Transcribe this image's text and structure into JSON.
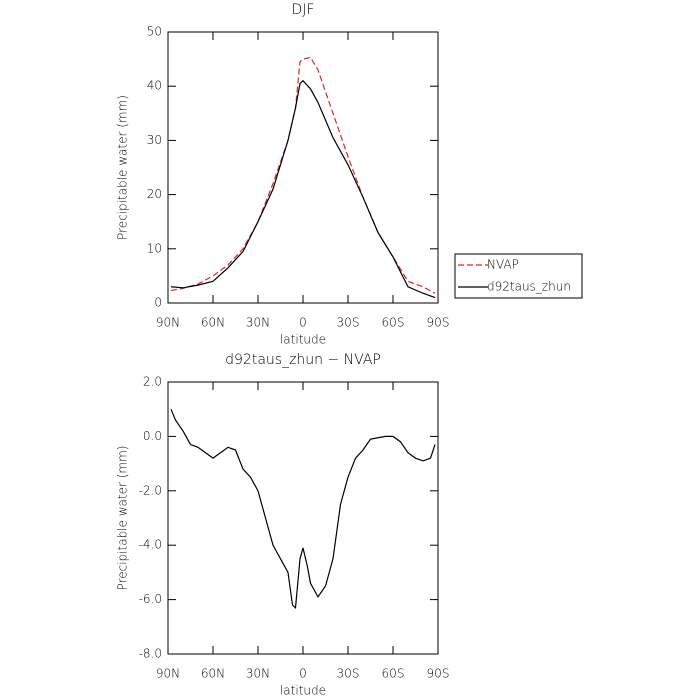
{
  "chart_data": [
    {
      "type": "line",
      "title": "DJF",
      "xlabel": "latitude",
      "ylabel": "Precipitable water (mm)",
      "x": [
        88,
        80,
        70,
        60,
        50,
        40,
        30,
        20,
        10,
        5,
        2,
        0,
        -5,
        -10,
        -20,
        -30,
        -40,
        -50,
        -60,
        -70,
        -80,
        -88
      ],
      "series": [
        {
          "name": "NVAP",
          "color": "#e8221c",
          "line_style": "dashed",
          "values": [
            2.3,
            2.7,
            3.5,
            5,
            7,
            10,
            15,
            22,
            30,
            36,
            44.5,
            45,
            45.3,
            43,
            35,
            27,
            19.5,
            13,
            8.5,
            4,
            3,
            1.8
          ]
        },
        {
          "name": "d92taus_zhun",
          "color": "#000000",
          "line_style": "solid",
          "values": [
            3,
            2.8,
            3.3,
            4,
            6.5,
            9.5,
            15,
            21,
            30,
            36,
            40.5,
            41,
            39.5,
            37,
            30.5,
            25.5,
            19.5,
            13,
            8.5,
            3,
            1.8,
            1
          ]
        }
      ],
      "xlim": [
        90,
        -90
      ],
      "xticks": [
        {
          "value": 90,
          "label": "90N"
        },
        {
          "value": 60,
          "label": "60N"
        },
        {
          "value": 30,
          "label": "30N"
        },
        0,
        {
          "value": -30,
          "label": "30S"
        },
        {
          "value": -60,
          "label": "60S"
        },
        {
          "value": -90,
          "label": "90S"
        }
      ],
      "ylim": [
        0,
        50
      ],
      "yticks": [
        0,
        10,
        20,
        30,
        40,
        50
      ],
      "legend": "right"
    },
    {
      "type": "line",
      "title": "d92taus_zhun − NVAP",
      "xlabel": "latitude",
      "ylabel": "Precipitable water (mm)",
      "x": [
        88,
        85,
        80,
        75,
        70,
        65,
        60,
        55,
        50,
        45,
        40,
        35,
        30,
        25,
        20,
        15,
        10,
        7,
        5,
        2,
        0,
        -3,
        -5,
        -10,
        -15,
        -20,
        -25,
        -30,
        -35,
        -40,
        -45,
        -50,
        -55,
        -60,
        -65,
        -70,
        -75,
        -80,
        -85,
        -88
      ],
      "values": [
        1.0,
        0.6,
        0.2,
        -0.3,
        -0.4,
        -0.6,
        -0.8,
        -0.6,
        -0.4,
        -0.5,
        -1.2,
        -1.5,
        -2.0,
        -3.0,
        -4.0,
        -4.5,
        -5.0,
        -6.2,
        -6.3,
        -4.5,
        -4.1,
        -4.8,
        -5.4,
        -5.9,
        -5.5,
        -4.5,
        -2.5,
        -1.5,
        -0.8,
        -0.5,
        -0.1,
        -0.05,
        0.0,
        0.0,
        -0.2,
        -0.6,
        -0.8,
        -0.9,
        -0.8,
        -0.3
      ],
      "color": "#000000",
      "xlim": [
        90,
        -90
      ],
      "xticks": [
        {
          "value": 90,
          "label": "90N"
        },
        {
          "value": 60,
          "label": "60N"
        },
        {
          "value": 30,
          "label": "30N"
        },
        0,
        {
          "value": -30,
          "label": "30S"
        },
        {
          "value": -60,
          "label": "60S"
        },
        {
          "value": -90,
          "label": "90S"
        }
      ],
      "ylim": [
        -8,
        2
      ],
      "yticks": [
        {
          "value": 2,
          "label": "2.0"
        },
        {
          "value": 0,
          "label": "0.0"
        },
        {
          "value": -2,
          "label": "-2.0"
        },
        {
          "value": -4,
          "label": "-4.0"
        },
        {
          "value": -6,
          "label": "-6.0"
        },
        {
          "value": -8,
          "label": "-8.0"
        }
      ]
    }
  ]
}
